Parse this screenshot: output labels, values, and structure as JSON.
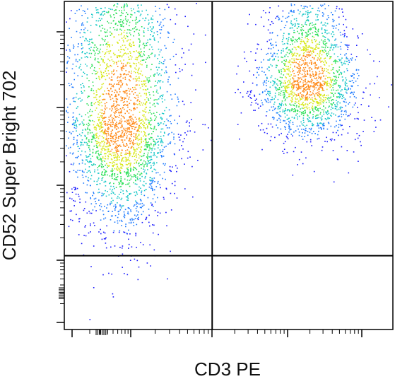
{
  "chart_data": {
    "type": "scatter",
    "subtype": "flow-cytometry-density-dot-plot",
    "xlabel": "CD3 PE",
    "ylabel": "CD52 Super Bright 702",
    "x_scale": "log",
    "y_scale": "log",
    "tick_labels_printed": false,
    "quadrant_gates": {
      "x_threshold_fraction": 0.45,
      "y_threshold_fraction": 0.225
    },
    "populations": [
      {
        "name": "",
        "center": {
          "x_fraction": 0.17,
          "y_fraction": 0.64
        },
        "spread": {
          "x": 0.09,
          "y": 0.24
        },
        "peak_density_color": "#33cc99",
        "relative_size": 0.62
      },
      {
        "name": "",
        "center": {
          "x_fraction": 0.74,
          "y_fraction": 0.76
        },
        "spread": {
          "x": 0.08,
          "y": 0.09
        },
        "peak_density_color": "#e8281e",
        "relative_size": 0.38
      }
    ],
    "density_colormap": [
      "#1a1aff",
      "#1e7bff",
      "#17c7c7",
      "#2ee05a",
      "#d8e81a",
      "#ff8a1a",
      "#e8281e"
    ],
    "background": "#ffffff",
    "gate_line_color": "#000000"
  }
}
